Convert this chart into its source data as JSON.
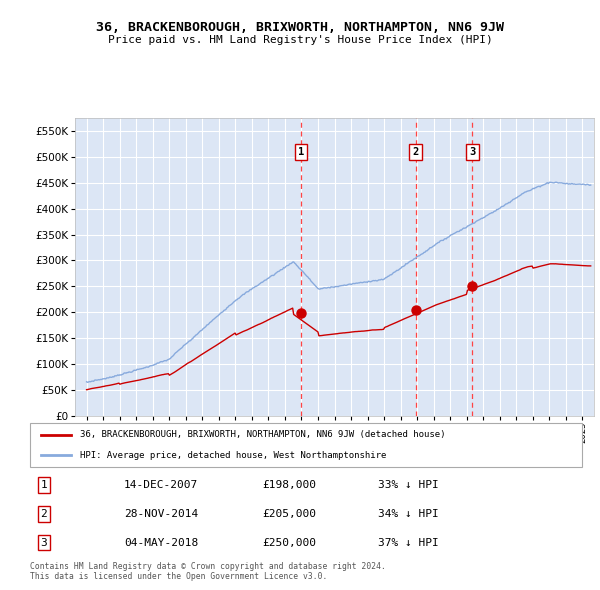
{
  "title": "36, BRACKENBOROUGH, BRIXWORTH, NORTHAMPTON, NN6 9JW",
  "subtitle": "Price paid vs. HM Land Registry's House Price Index (HPI)",
  "ylim": [
    0,
    575000
  ],
  "yticks": [
    0,
    50000,
    100000,
    150000,
    200000,
    250000,
    300000,
    350000,
    400000,
    450000,
    500000,
    550000
  ],
  "background_color": "#ffffff",
  "plot_bg_color": "#dce6f5",
  "grid_color": "#ffffff",
  "legend_label_red": "36, BRACKENBOROUGH, BRIXWORTH, NORTHAMPTON, NN6 9JW (detached house)",
  "legend_label_blue": "HPI: Average price, detached house, West Northamptonshire",
  "sales": [
    {
      "num": 1,
      "date_num": 2007.96,
      "price": 198000,
      "label": "14-DEC-2007",
      "pct": "33%"
    },
    {
      "num": 2,
      "date_num": 2014.91,
      "price": 205000,
      "label": "28-NOV-2014",
      "pct": "34%"
    },
    {
      "num": 3,
      "date_num": 2018.34,
      "price": 250000,
      "label": "04-MAY-2018",
      "pct": "37%"
    }
  ],
  "footer1": "Contains HM Land Registry data © Crown copyright and database right 2024.",
  "footer2": "This data is licensed under the Open Government Licence v3.0.",
  "red_color": "#cc0000",
  "blue_color": "#88aadd",
  "vline_color": "#ff4444",
  "xlim_min": 1994.3,
  "xlim_max": 2025.7
}
